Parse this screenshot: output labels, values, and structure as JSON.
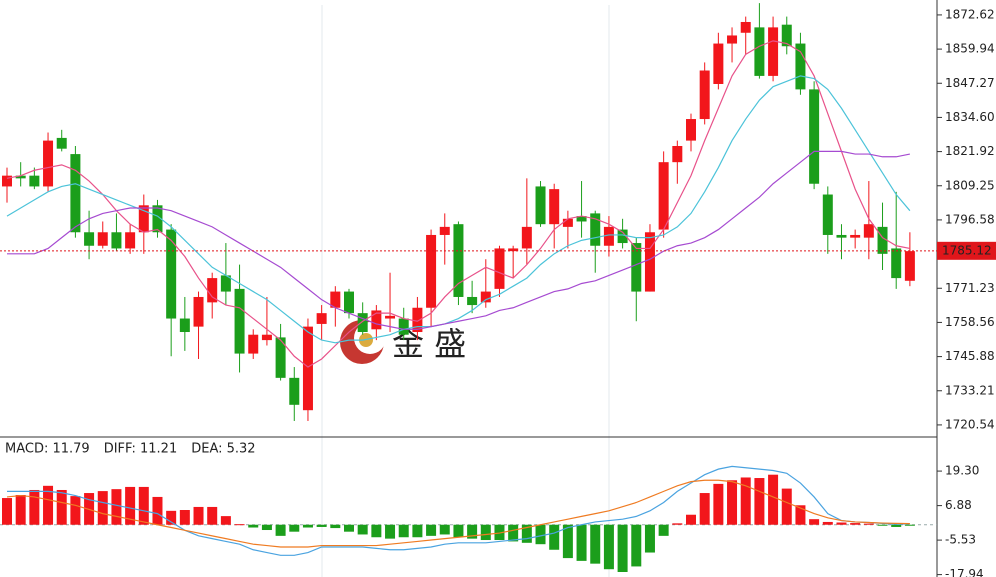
{
  "chart_data": [
    {
      "type": "candlestick",
      "up_color": "#f2161b",
      "down_color": "#1b9e1b",
      "open": [
        1809,
        1813,
        1813,
        1809,
        1827,
        1821,
        1792,
        1787,
        1792,
        1786,
        1792,
        1802,
        1793,
        1760,
        1757,
        1766,
        1776,
        1771,
        1747,
        1752,
        1753,
        1738,
        1726,
        1758,
        1764,
        1770,
        1762,
        1756,
        1760,
        1760,
        1755,
        1764,
        1791,
        1795,
        1768,
        1766,
        1771,
        1785,
        1786,
        1809,
        1795,
        1794,
        1798,
        1799,
        1787,
        1793,
        1788,
        1770,
        1793,
        1818,
        1826,
        1834,
        1847,
        1862,
        1866,
        1868,
        1850,
        1869,
        1862,
        1845,
        1806,
        1791,
        1790,
        1790,
        1794,
        1786,
        1774
      ],
      "high": [
        1816,
        1818,
        1816,
        1829,
        1830,
        1824,
        1800,
        1796,
        1799,
        1795,
        1806,
        1804,
        1795,
        1768,
        1770,
        1777,
        1788,
        1780,
        1756,
        1768,
        1758,
        1742,
        1760,
        1765,
        1772,
        1771,
        1766,
        1765,
        1777,
        1764,
        1768,
        1793,
        1799,
        1796,
        1774,
        1782,
        1787,
        1787,
        1812,
        1811,
        1810,
        1800,
        1811,
        1800,
        1798,
        1797,
        1790,
        1795,
        1822,
        1826,
        1836,
        1855,
        1866,
        1868,
        1872,
        1877,
        1872,
        1872,
        1866,
        1848,
        1809,
        1795,
        1793,
        1811,
        1803,
        1807,
        1792
      ],
      "low": [
        1803,
        1809,
        1808,
        1807,
        1822,
        1790,
        1782,
        1786,
        1785,
        1784,
        1784,
        1790,
        1746,
        1748,
        1745,
        1760,
        1765,
        1740,
        1745,
        1750,
        1737,
        1722,
        1722,
        1752,
        1757,
        1760,
        1754,
        1752,
        1755,
        1752,
        1752,
        1757,
        1780,
        1765,
        1762,
        1764,
        1768,
        1775,
        1780,
        1794,
        1786,
        1786,
        1790,
        1777,
        1783,
        1786,
        1759,
        1770,
        1790,
        1810,
        1822,
        1832,
        1845,
        1855,
        1858,
        1849,
        1848,
        1858,
        1843,
        1808,
        1784,
        1782,
        1786,
        1782,
        1778,
        1771,
        1772
      ],
      "close": [
        1813,
        1812,
        1809,
        1826,
        1823,
        1792,
        1787,
        1792,
        1786,
        1792,
        1802,
        1792,
        1760,
        1755,
        1768,
        1775,
        1770,
        1747,
        1754,
        1754,
        1738,
        1728,
        1757,
        1762,
        1770,
        1762,
        1755,
        1763,
        1761,
        1754,
        1764,
        1791,
        1794,
        1768,
        1765,
        1770,
        1786,
        1786,
        1794,
        1795,
        1808,
        1797,
        1796,
        1787,
        1794,
        1788,
        1770,
        1792,
        1818,
        1824,
        1834,
        1852,
        1862,
        1865,
        1870,
        1850,
        1868,
        1861,
        1845,
        1810,
        1791,
        1790,
        1791,
        1795,
        1784,
        1775,
        1785
      ],
      "series": [
        {
          "color": "#e8528a",
          "values": [
            1812,
            1813,
            1815,
            1816,
            1817,
            1815,
            1811,
            1806,
            1800,
            1795,
            1792,
            1793,
            1789,
            1783,
            1775,
            1768,
            1765,
            1764,
            1760,
            1756,
            1752,
            1746,
            1742,
            1745,
            1750,
            1755,
            1759,
            1762,
            1762,
            1760,
            1759,
            1762,
            1768,
            1773,
            1776,
            1779,
            1777,
            1775,
            1780,
            1786,
            1793,
            1797,
            1798,
            1797,
            1795,
            1792,
            1786,
            1786,
            1793,
            1803,
            1813,
            1826,
            1838,
            1850,
            1858,
            1861,
            1863,
            1862,
            1859,
            1850,
            1836,
            1822,
            1808,
            1797,
            1790,
            1787,
            1786
          ]
        },
        {
          "color": "#4cc3d9",
          "values": [
            1798,
            1801,
            1804,
            1807,
            1809,
            1810,
            1808,
            1806,
            1804,
            1802,
            1800,
            1798,
            1794,
            1789,
            1784,
            1779,
            1776,
            1773,
            1770,
            1767,
            1763,
            1759,
            1755,
            1752,
            1751,
            1752,
            1752,
            1753,
            1754,
            1756,
            1757,
            1757,
            1758,
            1760,
            1763,
            1767,
            1769,
            1772,
            1775,
            1780,
            1784,
            1787,
            1789,
            1790,
            1791,
            1791,
            1790,
            1790,
            1791,
            1794,
            1799,
            1807,
            1816,
            1826,
            1834,
            1841,
            1846,
            1848,
            1850,
            1849,
            1845,
            1838,
            1830,
            1822,
            1814,
            1806,
            1800
          ]
        },
        {
          "color": "#a64bd1",
          "values": [
            1784,
            1784,
            1784,
            1786,
            1790,
            1794,
            1797,
            1799,
            1800,
            1801,
            1801,
            1801,
            1800,
            1798,
            1796,
            1794,
            1791,
            1788,
            1785,
            1782,
            1779,
            1775,
            1771,
            1767,
            1764,
            1762,
            1760,
            1758,
            1757,
            1756,
            1756,
            1757,
            1758,
            1759,
            1760,
            1761,
            1763,
            1764,
            1766,
            1768,
            1770,
            1771,
            1773,
            1774,
            1776,
            1778,
            1780,
            1782,
            1785,
            1787,
            1788,
            1790,
            1793,
            1797,
            1801,
            1805,
            1810,
            1814,
            1818,
            1822,
            1822,
            1822,
            1821,
            1821,
            1820,
            1820,
            1821
          ]
        }
      ],
      "last_price": 1785.12,
      "ylim": [
        1716.8,
        1876.3
      ],
      "yticks": [
        1872.62,
        1859.94,
        1847.27,
        {
          "value": 1834.6,
          "label": "1834.60"
        },
        1821.92,
        1809.25,
        1796.58,
        1771.23,
        1758.56,
        1745.88,
        1733.21,
        1720.54
      ],
      "watermark": "金 盛"
    },
    {
      "type": "macd",
      "legend": [
        {
          "text": "MACD: 11.79",
          "color": "#e8221f"
        },
        {
          "text": "DIFF: 11.21",
          "color": "#4aa3e0"
        },
        {
          "text": "DEA: 5.32",
          "color": "#ef7b22"
        }
      ],
      "up_color": "#f2161b",
      "down_color": "#1b9e1b",
      "values": [
        9.6,
        10.7,
        12.5,
        14,
        12.5,
        10.3,
        11.4,
        12.1,
        12.8,
        13.6,
        13.6,
        10,
        5,
        5.3,
        6.4,
        6.4,
        3.1,
        0.2,
        -1,
        -1.9,
        -4,
        -2.5,
        -1,
        -0.8,
        -1.2,
        -2.5,
        -3.5,
        -4.5,
        -5,
        -4.5,
        -4.5,
        -4,
        -3.5,
        -4.5,
        -5,
        -5.5,
        -5.5,
        -6,
        -6.5,
        -7,
        -9,
        -12,
        -13,
        -14,
        -16,
        -17,
        -15,
        -10,
        -4,
        0.5,
        3.6,
        11.4,
        14.7,
        16,
        17,
        16.8,
        18,
        13,
        7,
        2,
        1,
        0.8,
        0.6,
        0.4,
        -0.3,
        -0.8,
        -0.3
      ],
      "series": [
        {
          "color": "#4aa3e0",
          "values": [
            12,
            12,
            12,
            12,
            11.5,
            10.5,
            9,
            8,
            7,
            6,
            5,
            4,
            1,
            -2,
            -4,
            -5,
            -6,
            -7,
            -9,
            -10,
            -11,
            -11,
            -10,
            -8,
            -8,
            -8,
            -8,
            -8.5,
            -9,
            -9,
            -8.5,
            -8,
            -7,
            -6.5,
            -6.5,
            -6.5,
            -6,
            -5.5,
            -5,
            -4,
            -3,
            -1,
            0,
            1,
            1.5,
            2,
            3,
            5,
            8,
            12,
            15,
            18,
            20,
            21,
            20.5,
            20,
            19.5,
            18.5,
            15,
            10,
            4,
            1.5,
            1,
            0.8,
            0.5,
            0.2,
            0.3
          ]
        },
        {
          "color": "#ef7b22",
          "values": [
            10,
            10.5,
            10,
            9,
            8,
            7,
            5.5,
            4,
            3,
            2,
            1,
            0,
            -1,
            -2,
            -3,
            -4,
            -5,
            -6,
            -7,
            -7.5,
            -8,
            -8,
            -8,
            -7.5,
            -7.5,
            -7.5,
            -7.5,
            -7.5,
            -7,
            -6.5,
            -6,
            -5.5,
            -5,
            -4.5,
            -4,
            -3.5,
            -3,
            -2,
            -1,
            0,
            1,
            2,
            3,
            4,
            5,
            6.5,
            8,
            10,
            12,
            14,
            15.5,
            16,
            16,
            15.5,
            14,
            12,
            10,
            8,
            6,
            4,
            2.5,
            1.5,
            1,
            0.8,
            0.6,
            0.5,
            0.4
          ]
        }
      ],
      "ylim": [
        -18.8,
        31.2
      ],
      "yticks": [
        {
          "value": 19.3,
          "label": "19.30"
        },
        6.88,
        -5.53,
        -17.94
      ]
    }
  ]
}
